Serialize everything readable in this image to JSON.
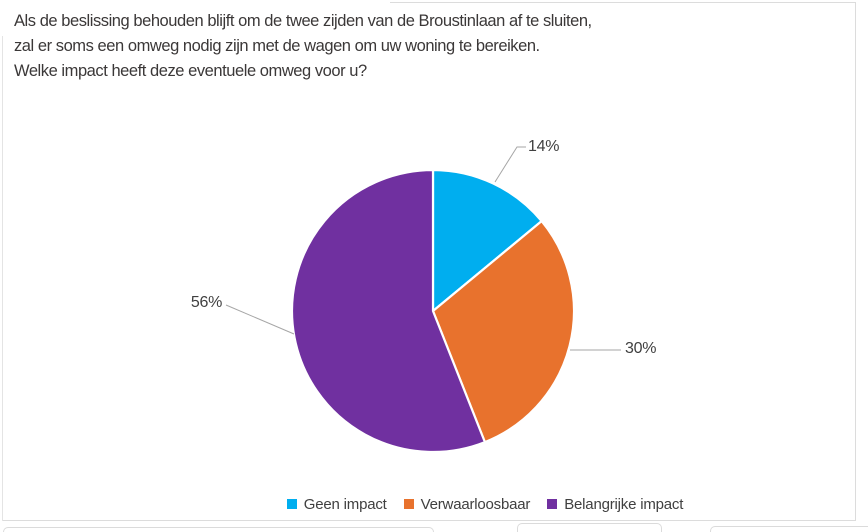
{
  "title": {
    "lines": [
      "Als de beslissing behouden blijft om de twee zijden van de Broustinlaan af te sluiten,",
      "zal er soms een omweg nodig zijn met de wagen om uw woning te bereiken.",
      "Welke impact heeft deze eventuele omweg voor u?"
    ]
  },
  "chart_data": {
    "type": "pie",
    "title": "Als de beslissing behouden blijft om de twee zijden van de Broustinlaan af te sluiten, zal er soms een omweg nodig zijn met de wagen om uw woning te bereiken. Welke impact heeft deze eventuele omweg voor u?",
    "categories": [
      "Geen impact",
      "Verwaarloosbaar",
      "Belangrijke impact"
    ],
    "values": [
      14,
      30,
      56
    ],
    "labels": [
      "14%",
      "30%",
      "56%"
    ],
    "colors": [
      "#00AEEF",
      "#E8722D",
      "#7030A0"
    ],
    "start_angle_deg": 0,
    "direction": "clockwise",
    "slice_border_color": "#FFFFFF",
    "data_label_color": "#404040",
    "leader_line_color": "#A6A6A6",
    "legend_position": "bottom",
    "background": "#FFFFFF"
  },
  "legend": {
    "items": [
      {
        "label": "Geen impact",
        "color": "#00AEEF"
      },
      {
        "label": "Verwaarloosbaar",
        "color": "#E8722D"
      },
      {
        "label": "Belangrijke impact",
        "color": "#7030A0"
      }
    ]
  }
}
